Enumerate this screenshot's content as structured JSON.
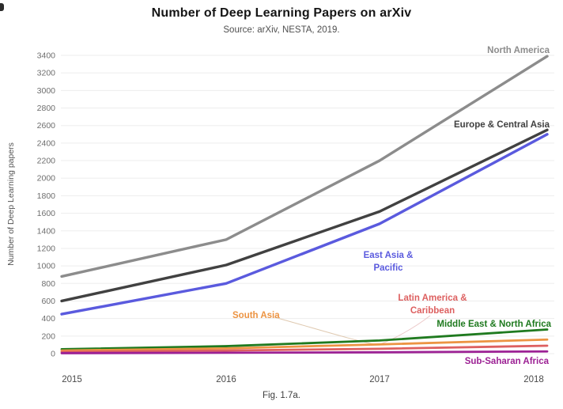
{
  "header": {
    "title": "Number of Deep Learning Papers on arXiv",
    "subtitle": "Source: arXiv, NESTA, 2019."
  },
  "caption": "Fig. 1.7a.",
  "chart_data": {
    "type": "line",
    "x": [
      "2015",
      "2016",
      "2017",
      "2018"
    ],
    "xlabel": "",
    "ylabel": "Number of Deep Learning papers",
    "ylim": [
      0,
      3400
    ],
    "ytick_step": 200,
    "grid": "horizontal-only",
    "legend_position": "inline-direct-labels",
    "background_color": "#ffffff",
    "gridline_color": "#ededed",
    "axis_tick_color": "#6e6e6e",
    "series": [
      {
        "name": "North America",
        "color": "#8c8c8c",
        "values": [
          880,
          1300,
          2200,
          3390
        ]
      },
      {
        "name": "Europe & Central Asia",
        "color": "#414141",
        "values": [
          600,
          1010,
          1620,
          2550
        ]
      },
      {
        "name": "East Asia & Pacific",
        "color": "#5a5ade",
        "values": [
          450,
          800,
          1480,
          2500
        ],
        "label_lines": [
          "East Asia &",
          "Pacific"
        ]
      },
      {
        "name": "Middle East & North Africa",
        "color": "#1f7a1f",
        "values": [
          50,
          85,
          150,
          275
        ]
      },
      {
        "name": "South Asia",
        "color": "#ec9443",
        "values": [
          35,
          60,
          105,
          160
        ]
      },
      {
        "name": "Latin America & Caribbean",
        "color": "#dd6060",
        "values": [
          20,
          35,
          55,
          90
        ],
        "label_lines": [
          "Latin America &",
          "Caribbean"
        ]
      },
      {
        "name": "Sub-Saharan Africa",
        "color": "#9c2194",
        "values": [
          5,
          10,
          15,
          25
        ]
      }
    ]
  }
}
